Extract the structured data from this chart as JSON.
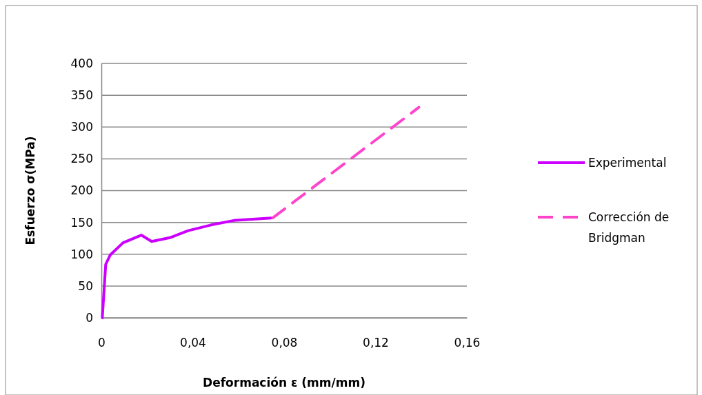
{
  "chart_data": {
    "type": "line",
    "xlabel": "Deformación ε (mm/mm)",
    "ylabel": "Esfuerzo σ(MPa)",
    "xlim": [
      0,
      0.16
    ],
    "xticks": [
      {
        "value": 0,
        "label": "0"
      },
      {
        "value": 0.04,
        "label": "0,04"
      },
      {
        "value": 0.08,
        "label": "0,08"
      },
      {
        "value": 0.12,
        "label": "0,12"
      },
      {
        "value": 0.16,
        "label": "0,16"
      }
    ],
    "ylim": [
      0,
      400
    ],
    "yticks": [
      0,
      50,
      100,
      150,
      200,
      250,
      300,
      350,
      400
    ],
    "grid": "y",
    "legend": "right",
    "marker": "none",
    "series": [
      {
        "name": "Experimental",
        "color": "#cc00ff",
        "line_style": "solid",
        "x": [
          0.0004,
          0.0019,
          0.0039,
          0.0095,
          0.0175,
          0.022,
          0.03,
          0.038,
          0.048,
          0.058,
          0.0744
        ],
        "values": [
          0,
          84,
          99,
          118,
          130,
          120,
          126,
          137,
          146,
          153,
          157
        ]
      },
      {
        "name": "Corrección de Bridgman",
        "color": "#ff44cc",
        "line_style": "dashed",
        "x": [
          0.075,
          0.139
        ],
        "values": [
          157,
          331
        ]
      }
    ]
  }
}
